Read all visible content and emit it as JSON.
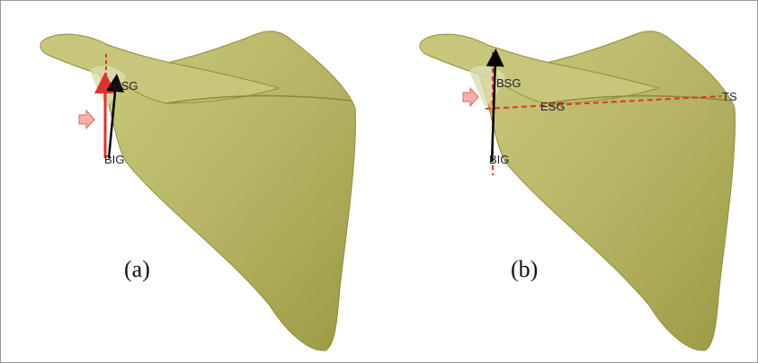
{
  "panels": [
    {
      "label": "(a)",
      "annotations": [
        "BSG",
        "BIG"
      ]
    },
    {
      "label": "(b)",
      "annotations": [
        "BSG",
        "ESG",
        "TS",
        "BIG"
      ]
    }
  ]
}
